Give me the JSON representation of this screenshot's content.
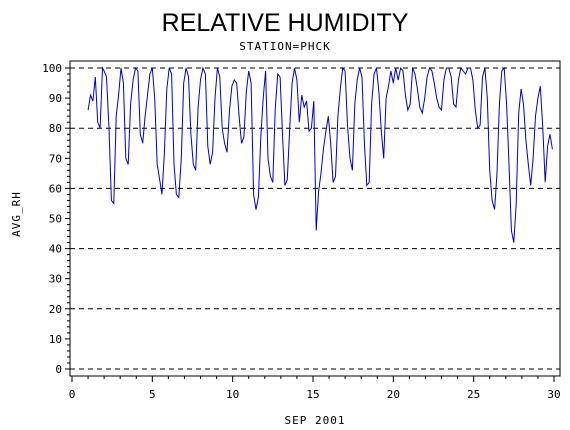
{
  "chart_data": {
    "type": "line",
    "title": "RELATIVE HUMIDITY",
    "subtitle": "STATION=PHCK",
    "xlabel": "SEP 2001",
    "ylabel": "AVG_RH",
    "xlim": [
      0,
      30
    ],
    "ylim": [
      0,
      100
    ],
    "x_ticks": [
      0,
      5,
      10,
      15,
      20,
      25,
      30
    ],
    "y_ticks": [
      0,
      10,
      20,
      30,
      40,
      50,
      60,
      70,
      80,
      90,
      100
    ],
    "reference_lines": [
      0,
      20,
      40,
      60,
      80,
      100
    ],
    "grid": false,
    "line_color": "#0000cc",
    "series": [
      {
        "x": [
          1.0,
          1.15,
          1.3,
          1.45,
          1.6,
          1.75,
          1.9,
          2.0,
          2.15,
          2.3,
          2.45,
          2.6,
          2.75,
          2.9,
          3.05,
          3.2,
          3.35,
          3.5,
          3.65,
          3.8,
          3.95,
          4.1,
          4.25,
          4.4,
          4.55,
          4.7,
          4.85,
          5.0,
          5.15,
          5.3,
          5.45,
          5.6,
          5.75,
          5.9,
          6.05,
          6.2,
          6.35,
          6.5,
          6.65,
          6.8,
          6.95,
          7.1,
          7.25,
          7.4,
          7.55,
          7.7,
          7.85,
          8.0,
          8.15,
          8.3,
          8.45,
          8.6,
          8.75,
          8.9,
          9.05,
          9.2,
          9.35,
          9.5,
          9.65,
          9.8,
          9.95,
          10.1,
          10.25,
          10.4,
          10.55,
          10.7,
          10.85,
          11.0,
          11.15,
          11.3,
          11.45,
          11.6,
          11.75,
          11.9,
          12.05,
          12.2,
          12.35,
          12.5,
          12.65,
          12.8,
          12.95,
          13.1,
          13.25,
          13.4,
          13.55,
          13.7,
          13.85,
          14.0,
          14.15,
          14.3,
          14.45,
          14.6,
          14.75,
          14.9,
          15.05,
          15.2,
          15.35,
          15.5,
          15.65,
          15.8,
          15.95,
          16.1,
          16.25,
          16.4,
          16.55,
          16.7,
          16.85,
          17.0,
          17.15,
          17.3,
          17.45,
          17.6,
          17.75,
          17.9,
          18.05,
          18.2,
          18.35,
          18.5,
          18.65,
          18.8,
          18.95,
          19.1,
          19.25,
          19.4,
          19.55,
          19.7,
          19.85,
          20.0,
          20.15,
          20.3,
          20.45,
          20.6,
          20.75,
          20.9,
          21.05,
          21.2,
          21.35,
          21.5,
          21.65,
          21.8,
          21.95,
          22.1,
          22.25,
          22.4,
          22.55,
          22.7,
          22.85,
          23.0,
          23.15,
          23.3,
          23.45,
          23.6,
          23.75,
          23.9,
          24.05,
          24.2,
          24.35,
          24.5,
          24.65,
          24.8,
          24.95,
          25.1,
          25.25,
          25.4,
          25.55,
          25.7,
          25.85,
          26.0,
          26.15,
          26.3,
          26.45,
          26.6,
          26.75,
          26.9,
          27.05,
          27.2,
          27.35,
          27.5,
          27.65,
          27.8,
          27.95,
          28.1,
          28.25,
          28.4,
          28.55,
          28.7,
          28.85,
          29.0,
          29.15,
          29.3,
          29.45,
          29.6,
          29.75,
          29.9
        ],
        "values": [
          86,
          91,
          89,
          97,
          82,
          80,
          100,
          99,
          97,
          80,
          56,
          55,
          84,
          91,
          100,
          95,
          70,
          68,
          88,
          96,
          100,
          99,
          78,
          75,
          84,
          91,
          98,
          100,
          90,
          68,
          63,
          58,
          72,
          93,
          100,
          98,
          68,
          58,
          57,
          70,
          95,
          100,
          97,
          78,
          68,
          66,
          87,
          96,
          100,
          98,
          74,
          68,
          72,
          90,
          100,
          97,
          80,
          75,
          72,
          86,
          94,
          96,
          95,
          84,
          75,
          77,
          92,
          99,
          95,
          58,
          53,
          57,
          77,
          90,
          99,
          70,
          64,
          62,
          86,
          98,
          97,
          78,
          61,
          63,
          80,
          95,
          100,
          96,
          82,
          91,
          87,
          89,
          79,
          80,
          89,
          46,
          59,
          65,
          73,
          79,
          84,
          75,
          62,
          64,
          84,
          93,
          100,
          99,
          81,
          70,
          66,
          88,
          96,
          100,
          97,
          75,
          61,
          62,
          88,
          98,
          100,
          92,
          79,
          70,
          90,
          94,
          99,
          95,
          100,
          96,
          100,
          99,
          91,
          86,
          88,
          100,
          98,
          93,
          87,
          85,
          90,
          97,
          100,
          99,
          95,
          90,
          87,
          86,
          96,
          100,
          100,
          97,
          88,
          87,
          96,
          100,
          99,
          98,
          100,
          100,
          96,
          86,
          80,
          81,
          97,
          100,
          90,
          66,
          56,
          53,
          65,
          88,
          99,
          100,
          88,
          68,
          46,
          42,
          55,
          85,
          93,
          88,
          76,
          68,
          61,
          70,
          84,
          90,
          94,
          80,
          62,
          74,
          78,
          73
        ]
      }
    ]
  }
}
